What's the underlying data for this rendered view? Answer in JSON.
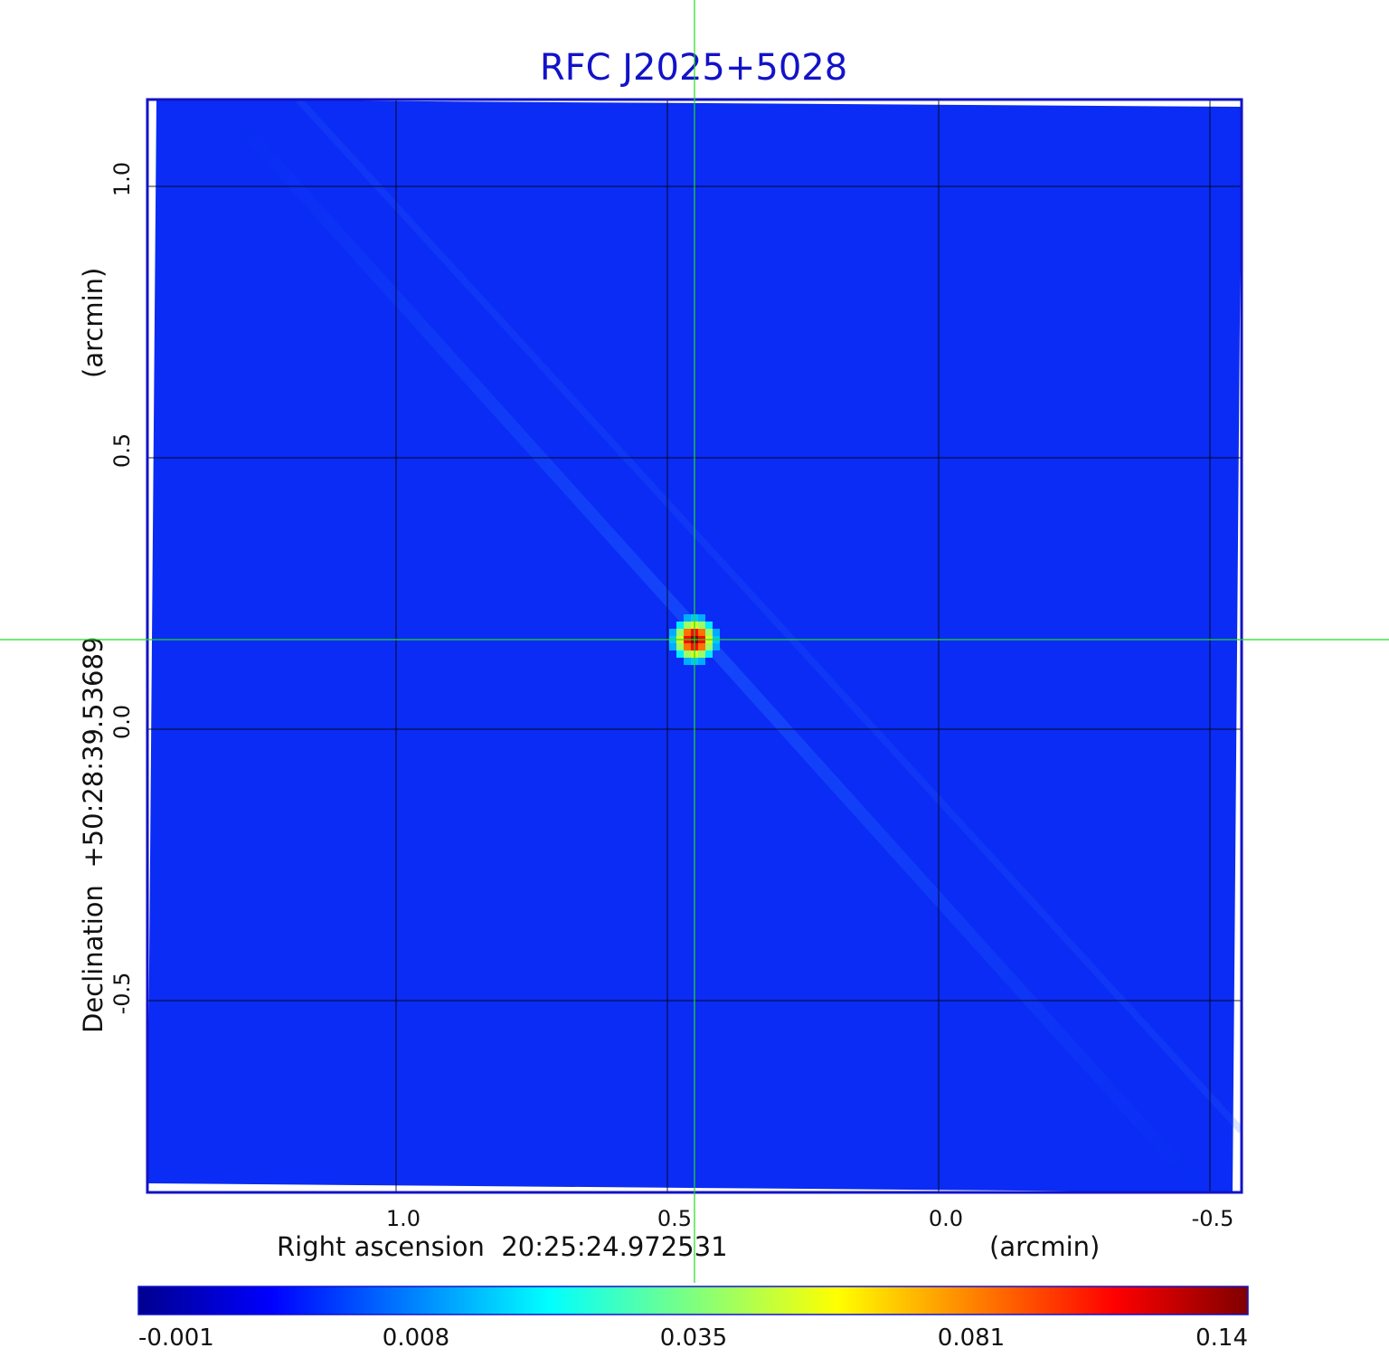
{
  "chart_data": {
    "type": "heatmap",
    "title": "RFC J2025+5028",
    "xlabel": "Right ascension  20:25:24.972531",
    "xunit": "(arcmin)",
    "ylabel": "Declination  +50:28:39.53689",
    "yunit": "(arcmin)",
    "x_ticks": [
      "1.0",
      "0.5",
      "0.0",
      "-0.5"
    ],
    "x_tick_values": [
      1.0,
      0.5,
      0.0,
      -0.5
    ],
    "y_ticks": [
      "1.0",
      "0.5",
      "0.0",
      "-0.5"
    ],
    "y_tick_values": [
      1.0,
      0.5,
      0.0,
      -0.5
    ],
    "xlim": [
      1.46,
      -0.56
    ],
    "ylim": [
      -0.85,
      1.16
    ],
    "grid": true,
    "grid_color": "#000000",
    "crosshair_color": "#22dd22",
    "frame_color": "#1212c8",
    "background_level": 0.003,
    "source": {
      "x": 0.45,
      "y": 0.165,
      "peak": 0.14
    },
    "colorbar": {
      "colormap": "jet",
      "ticks": [
        "-0.001",
        "0.008",
        "0.035",
        "0.081",
        "0.14"
      ],
      "min": -0.001,
      "max": 0.14
    }
  }
}
